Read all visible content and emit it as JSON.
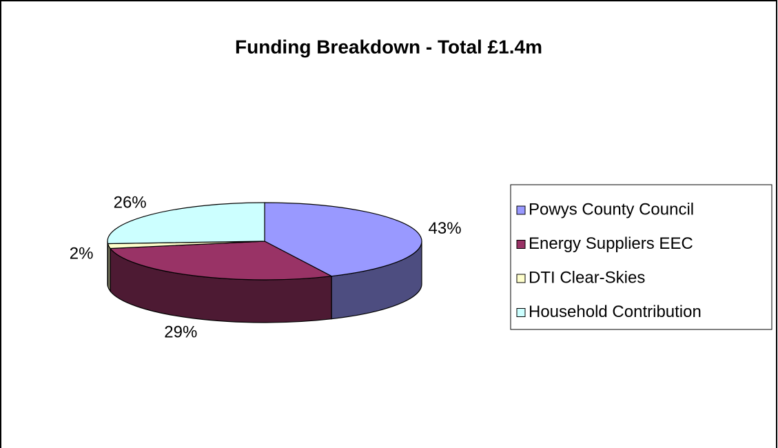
{
  "chart_data": {
    "type": "pie3d",
    "title": "Funding Breakdown - Total £1.4m",
    "categories": [
      "Powys County Council",
      "Energy Suppliers EEC",
      "DTI Clear-Skies",
      "Household Contribution"
    ],
    "values": [
      43,
      29,
      2,
      26
    ],
    "value_labels": [
      "43%",
      "29%",
      "2%",
      "26%"
    ],
    "colors": [
      "#9999ff",
      "#993366",
      "#ffffcc",
      "#ccffff"
    ],
    "legend": "right"
  }
}
